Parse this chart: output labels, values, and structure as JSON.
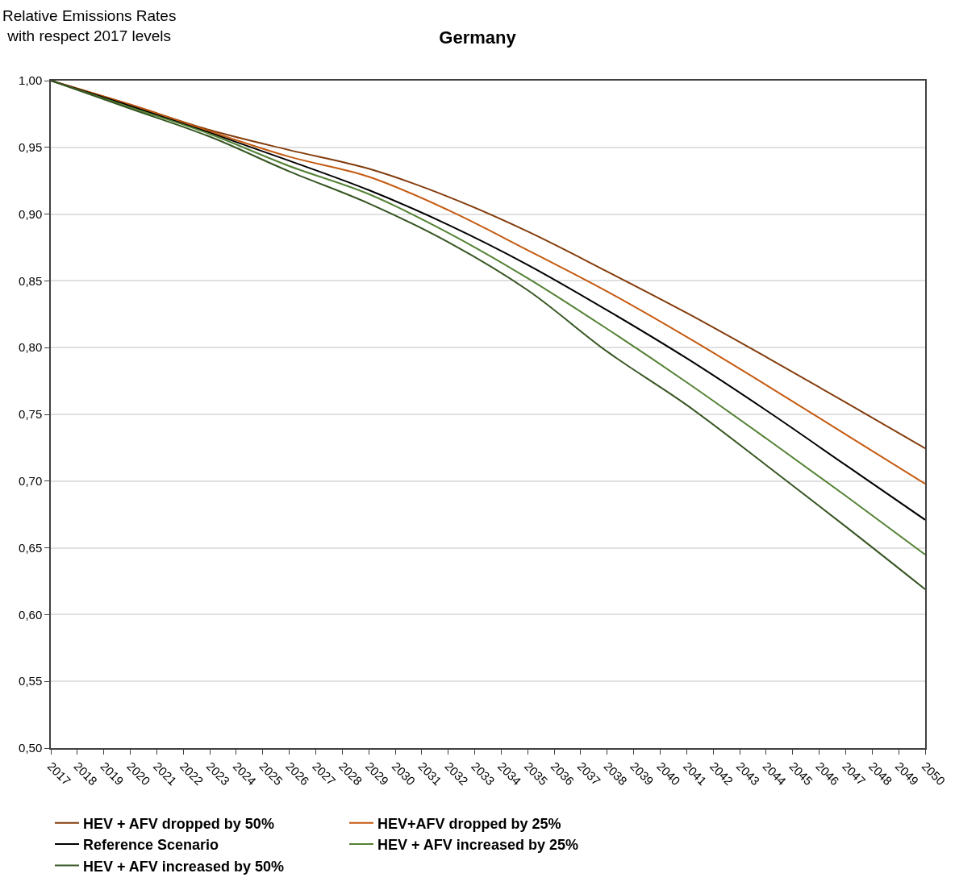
{
  "chart_data": {
    "type": "line",
    "title": "Germany",
    "ylabel": "Relative Emissions Rates\nwith respect 2017 levels",
    "x": [
      2017,
      2020,
      2023,
      2026,
      2029,
      2032,
      2035,
      2038,
      2041,
      2044,
      2047,
      2050
    ],
    "series": [
      {
        "name": "HEV + AFV dropped by 50%",
        "color": "#843c0c",
        "values": [
          1.0,
          0.982,
          0.963,
          0.948,
          0.934,
          0.913,
          0.887,
          0.857,
          0.826,
          0.793,
          0.759,
          0.7245
        ]
      },
      {
        "name": "HEV+AFV dropped by 25%",
        "color": "#c55a11",
        "values": [
          1.0,
          0.982,
          0.962,
          0.943,
          0.928,
          0.903,
          0.873,
          0.842,
          0.808,
          0.772,
          0.735,
          0.698
        ]
      },
      {
        "name": "Reference Scenario",
        "color": "#000000",
        "values": [
          1.0,
          0.981,
          0.961,
          0.94,
          0.918,
          0.892,
          0.862,
          0.828,
          0.792,
          0.753,
          0.712,
          0.671
        ]
      },
      {
        "name": "HEV + AFV increased by 25%",
        "color": "#548235",
        "values": [
          1.0,
          0.98,
          0.96,
          0.936,
          0.915,
          0.886,
          0.852,
          0.814,
          0.774,
          0.732,
          0.689,
          0.645
        ]
      },
      {
        "name": "HEV + AFV increased by 50%",
        "color": "#375623",
        "values": [
          1.0,
          0.979,
          0.958,
          0.932,
          0.908,
          0.879,
          0.843,
          0.797,
          0.757,
          0.712,
          0.666,
          0.619
        ]
      }
    ],
    "xlim": [
      2017,
      2050
    ],
    "xticks": [
      2017,
      2018,
      2019,
      2020,
      2021,
      2022,
      2023,
      2024,
      2025,
      2026,
      2027,
      2028,
      2029,
      2030,
      2031,
      2032,
      2033,
      2034,
      2035,
      2036,
      2037,
      2038,
      2039,
      2040,
      2041,
      2042,
      2043,
      2044,
      2045,
      2046,
      2047,
      2048,
      2049,
      2050
    ],
    "ylim": [
      0.5,
      1.0
    ],
    "yticks": [
      {
        "value": 0.5,
        "label": "0,50"
      },
      {
        "value": 0.55,
        "label": "0,55"
      },
      {
        "value": 0.6,
        "label": "0,60"
      },
      {
        "value": 0.65,
        "label": "0,65"
      },
      {
        "value": 0.7,
        "label": "0,70"
      },
      {
        "value": 0.75,
        "label": "0,75"
      },
      {
        "value": 0.8,
        "label": "0,80"
      },
      {
        "value": 0.85,
        "label": "0,85"
      },
      {
        "value": 0.9,
        "label": "0,90"
      },
      {
        "value": 0.95,
        "label": "0,95"
      },
      {
        "value": 1.0,
        "label": "1,00"
      }
    ],
    "grid": "y",
    "legend": "bottom",
    "marker": "none",
    "line_style": "solid"
  }
}
